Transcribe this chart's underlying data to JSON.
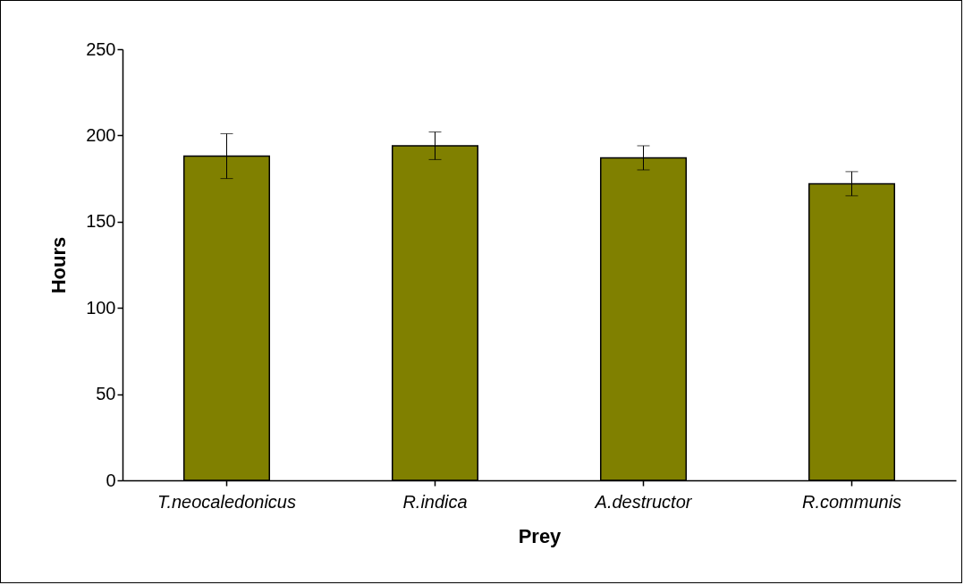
{
  "chart_data": {
    "type": "bar",
    "xlabel": "Prey",
    "ylabel": "Hours",
    "categories": [
      "T.neocaledonicus",
      "R.indica",
      "A.destructor",
      "R.communis"
    ],
    "values": [
      188,
      194,
      187,
      172
    ],
    "errors": [
      13,
      8,
      7,
      7
    ],
    "color": "#808000",
    "ylim": [
      0,
      250
    ],
    "yticks": [
      0,
      50,
      100,
      150,
      200,
      250
    ],
    "grid": false
  }
}
